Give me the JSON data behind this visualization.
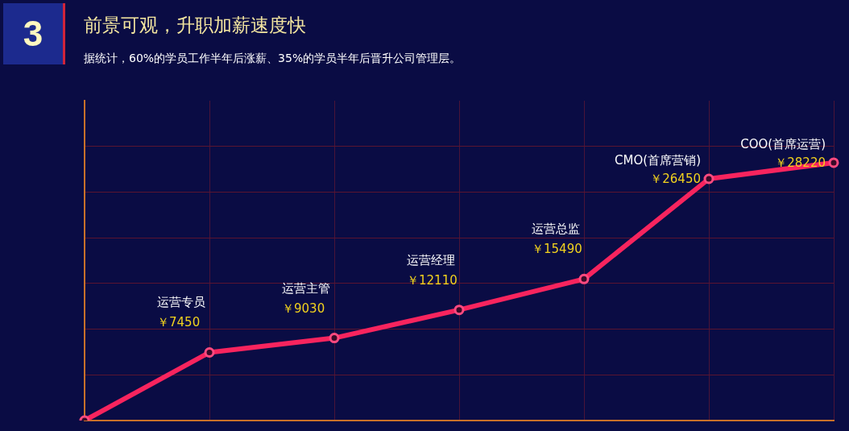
{
  "chart_data": {
    "type": "line",
    "title": "前景可观，升职加薪速度快",
    "subtitle": "据统计，60%的学员工作半年后涨薪、35%的学员半年后晋升公司管理层。",
    "annotations": [
      "3"
    ],
    "categories": [
      null,
      "运营专员",
      "运营主管",
      "运营经理",
      "运营总监",
      "CMO(首席营销)",
      "COO(首席运营)"
    ],
    "series": [
      {
        "color": "#f8245e",
        "values": [
          0,
          7450,
          9030,
          12110,
          15490,
          26450,
          28220
        ],
        "value_labels": [
          null,
          "￥7450",
          "￥9030",
          "￥12110",
          "￥15490",
          "￥26450",
          "￥28220"
        ]
      }
    ],
    "ylim": [
      0,
      35000
    ],
    "yticks": [
      {
        "value": 5000,
        "label": null
      },
      {
        "value": 10000,
        "label": null
      },
      {
        "value": 15000,
        "label": null
      },
      {
        "value": 20000,
        "label": null
      },
      {
        "value": 25000,
        "label": null
      },
      {
        "value": 30000,
        "label": null
      }
    ],
    "grid": true,
    "tick_labels": false,
    "marker": "circle",
    "line_style": "solid"
  }
}
